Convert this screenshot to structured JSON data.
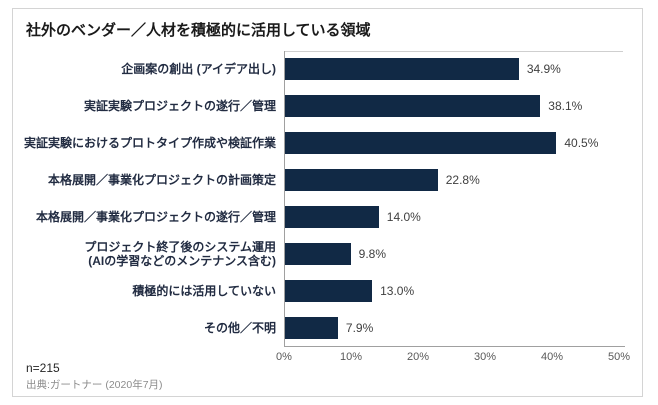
{
  "chart_data": {
    "type": "bar",
    "orientation": "horizontal",
    "title": "社外のベンダー／人材を積極的に活用している領域",
    "grid": false,
    "legend": null,
    "xlim": [
      0,
      50
    ],
    "x_ticks": [
      "0%",
      "10%",
      "20%",
      "30%",
      "40%",
      "50%"
    ],
    "bar_color": "#112945",
    "rows": [
      {
        "label_lines": [
          "企画案の創出 (アイデア出し)"
        ],
        "value": 34.9,
        "value_label": "34.9%"
      },
      {
        "label_lines": [
          "実証実験プロジェクトの遂行／管理"
        ],
        "value": 38.1,
        "value_label": "38.1%"
      },
      {
        "label_lines": [
          "実証実験におけるプロトタイプ作成や検証作業"
        ],
        "value": 40.5,
        "value_label": "40.5%"
      },
      {
        "label_lines": [
          "本格展開／事業化プロジェクトの計画策定"
        ],
        "value": 22.8,
        "value_label": "22.8%"
      },
      {
        "label_lines": [
          "本格展開／事業化プロジェクトの遂行／管理"
        ],
        "value": 14.0,
        "value_label": "14.0%"
      },
      {
        "label_lines": [
          "プロジェクト終了後のシステム運用",
          "(AIの学習などのメンテナンス含む)"
        ],
        "value": 9.8,
        "value_label": "9.8%"
      },
      {
        "label_lines": [
          "積極的には活用していない"
        ],
        "value": 13.0,
        "value_label": "13.0%"
      },
      {
        "label_lines": [
          "その他／不明"
        ],
        "value": 7.9,
        "value_label": "7.9%"
      }
    ],
    "sample_size": "n=215",
    "source": "出典:ガートナー (2020年7月)"
  }
}
